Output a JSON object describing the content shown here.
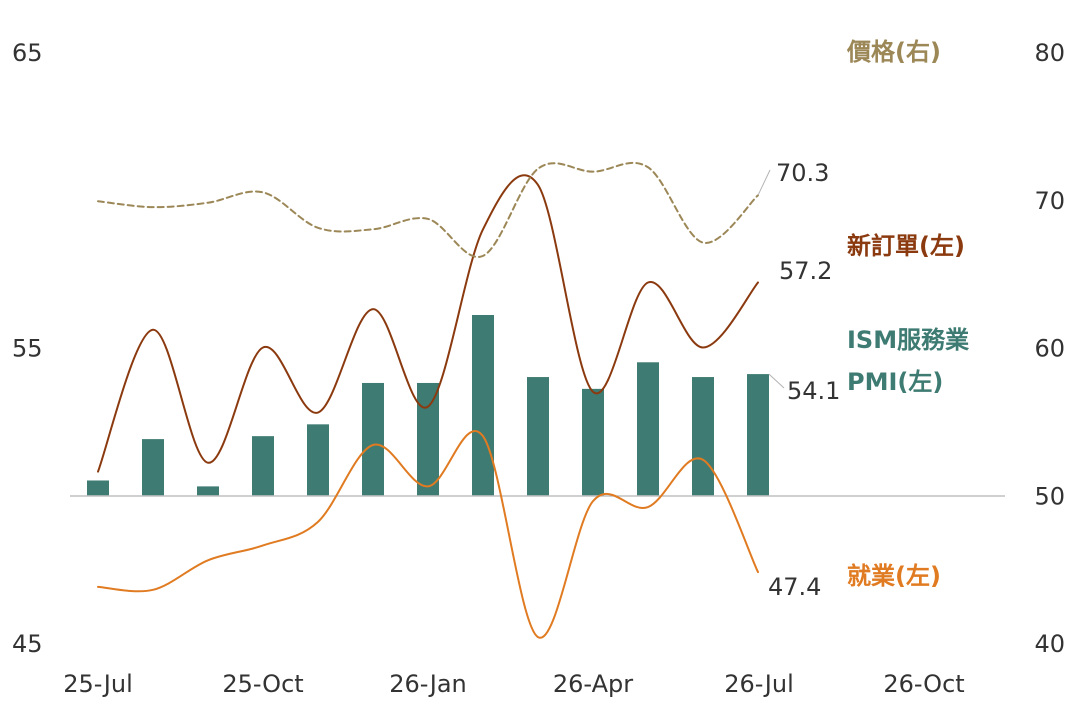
{
  "chart_data": {
    "type": "bar+line",
    "x_ticks": [
      "25-Jul",
      "25-Oct",
      "26-Jan",
      "26-Apr",
      "26-Jul",
      "26-Oct"
    ],
    "y_left": {
      "min": 45,
      "max": 65,
      "ticks": [
        "45",
        "55",
        "65"
      ]
    },
    "y_right": {
      "min": 40,
      "max": 80,
      "ticks": [
        "40",
        "50",
        "60",
        "70",
        "80"
      ]
    },
    "baseline": 50,
    "series": [
      {
        "name": "ISM服務業PMI(左)",
        "type": "bar",
        "axis": "left",
        "color": "#3e7b72",
        "x": [
          "2025-07",
          "2025-08",
          "2025-09",
          "2025-10",
          "2025-11",
          "2025-12",
          "2026-01",
          "2026-02",
          "2026-03",
          "2026-04",
          "2026-05",
          "2026-06",
          "2026-07"
        ],
        "values": [
          50.5,
          51.9,
          50.3,
          52.0,
          52.4,
          53.8,
          53.8,
          56.1,
          54.0,
          53.6,
          54.5,
          54.0,
          54.1
        ],
        "end_label": "54.1"
      },
      {
        "name": "新訂單(左)",
        "type": "line",
        "axis": "left",
        "color": "#8b3a0f",
        "x": [
          "2025-07",
          "2025-08",
          "2025-09",
          "2025-10",
          "2025-11",
          "2025-12",
          "2026-01",
          "2026-02",
          "2026-03",
          "2026-04",
          "2026-05",
          "2026-06",
          "2026-07"
        ],
        "values": [
          50.8,
          55.6,
          51.1,
          55.0,
          52.8,
          56.3,
          53.0,
          59.0,
          60.5,
          53.5,
          57.2,
          55.0,
          57.2
        ],
        "end_label": "57.2"
      },
      {
        "name": "就業(左)",
        "type": "line",
        "axis": "left",
        "color": "#e07b22",
        "x": [
          "2025-07",
          "2025-08",
          "2025-09",
          "2025-10",
          "2025-11",
          "2025-12",
          "2026-01",
          "2026-02",
          "2026-03",
          "2026-04",
          "2026-05",
          "2026-06",
          "2026-07"
        ],
        "values": [
          46.9,
          46.8,
          47.8,
          48.3,
          49.1,
          51.7,
          50.3,
          52.0,
          45.2,
          49.8,
          49.6,
          51.2,
          47.4
        ],
        "end_label": "47.4"
      },
      {
        "name": "價格(右)",
        "type": "line",
        "axis": "right",
        "style": "dashed",
        "color": "#9c8757",
        "x": [
          "2025-07",
          "2025-08",
          "2025-09",
          "2025-10",
          "2025-11",
          "2025-12",
          "2026-01",
          "2026-02",
          "2026-03",
          "2026-04",
          "2026-05",
          "2026-06",
          "2026-07"
        ],
        "values": [
          69.9,
          69.5,
          69.8,
          70.5,
          68.1,
          68.0,
          68.7,
          66.2,
          72.1,
          71.9,
          72.2,
          67.1,
          70.3
        ],
        "end_label": "70.3"
      }
    ],
    "legend": [
      {
        "text": "價格(右)",
        "color": "#9c8757"
      },
      {
        "text": "新訂單(左)",
        "color": "#8b3a0f"
      },
      {
        "text": "ISM服務業",
        "color": "#3e7b72"
      },
      {
        "text": "PMI(左)",
        "color": "#3e7b72"
      },
      {
        "text": "就業(左)",
        "color": "#e07b22"
      }
    ],
    "gridlines": false
  }
}
